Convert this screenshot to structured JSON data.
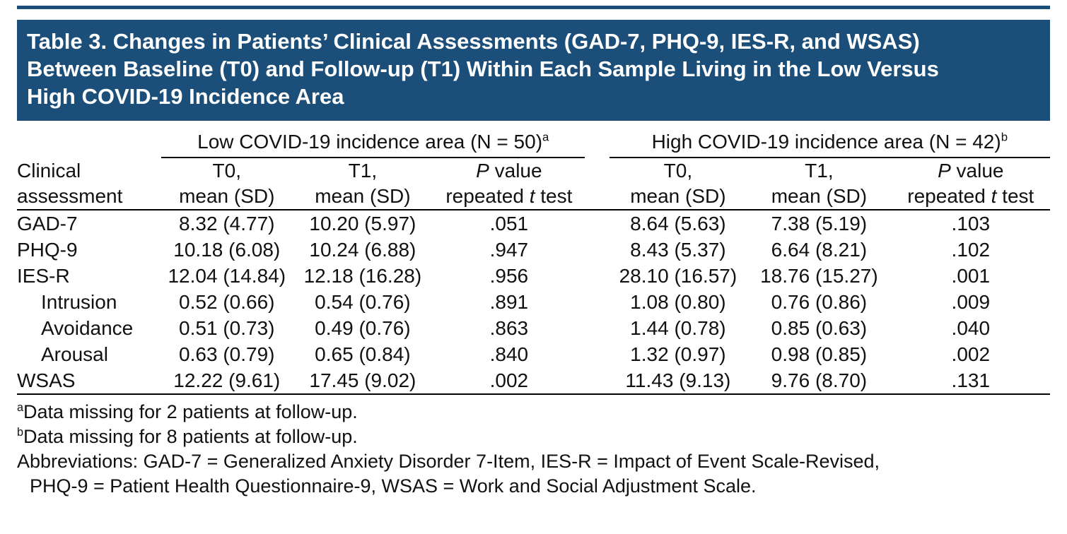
{
  "colors": {
    "header_bg": "#1b4e79",
    "rule": "#000000",
    "text": "#111111"
  },
  "title": {
    "lines": [
      "Table 3. Changes in Patients’ Clinical Assessments (GAD-7, PHQ-9, IES-R, and WSAS)",
      "Between Baseline (T0) and Follow-up (T1) Within Each Sample Living in the Low Versus",
      "High COVID-19 Incidence Area"
    ]
  },
  "table": {
    "groups": [
      {
        "label": "Low COVID-19 incidence area (N = 50)",
        "sup": "a"
      },
      {
        "label": "High COVID-19 incidence area (N = 42)",
        "sup": "b"
      }
    ],
    "row_header": {
      "line1": "Clinical",
      "line2": "assessment"
    },
    "col_headers": {
      "t0_line1": "T0,",
      "t0_line2": "mean (SD)",
      "t1_line1": "T1,",
      "t1_line2": "mean (SD)",
      "p_line1_italic": "P",
      "p_line1_rest": " value",
      "p_line2_pre": "repeated ",
      "p_line2_italic": "t",
      "p_line2_post": " test"
    },
    "rows": [
      {
        "label": "GAD-7",
        "cells": [
          "8.32 (4.77)",
          "10.20 (5.97)",
          ".051",
          "8.64 (5.63)",
          "7.38 (5.19)",
          ".103"
        ]
      },
      {
        "label": "PHQ-9",
        "cells": [
          "10.18 (6.08)",
          "10.24 (6.88)",
          ".947",
          "8.43 (5.37)",
          "6.64 (8.21)",
          ".102"
        ]
      },
      {
        "label": "IES-R",
        "cells": [
          "12.04 (14.84)",
          "12.18 (16.28)",
          ".956",
          "28.10 (16.57)",
          "18.76 (15.27)",
          ".001"
        ]
      },
      {
        "label": "Intrusion",
        "cells": [
          "0.52 (0.66)",
          "0.54 (0.76)",
          ".891",
          "1.08 (0.80)",
          "0.76 (0.86)",
          ".009"
        ]
      },
      {
        "label": "Avoidance",
        "cells": [
          "0.51 (0.73)",
          "0.49 (0.76)",
          ".863",
          "1.44 (0.78)",
          "0.85 (0.63)",
          ".040"
        ]
      },
      {
        "label": "Arousal",
        "cells": [
          "0.63 (0.79)",
          "0.65 (0.84)",
          ".840",
          "1.32 (0.97)",
          "0.98 (0.85)",
          ".002"
        ]
      },
      {
        "label": "WSAS",
        "cells": [
          "12.22 (9.61)",
          "17.45 (9.02)",
          ".002",
          "11.43 (9.13)",
          "9.76 (8.70)",
          ".131"
        ]
      }
    ]
  },
  "footnotes": {
    "a_sup": "a",
    "a_text": "Data missing for 2 patients at follow-up.",
    "b_sup": "b",
    "b_text": "Data missing for 8 patients at follow-up.",
    "abbrev_line1": "Abbreviations: GAD-7 = Generalized Anxiety Disorder 7-Item, IES-R = Impact of Event Scale-Revised,",
    "abbrev_line2": "PHQ-9 = Patient Health Questionnaire-9, WSAS = Work and Social Adjustment Scale."
  }
}
